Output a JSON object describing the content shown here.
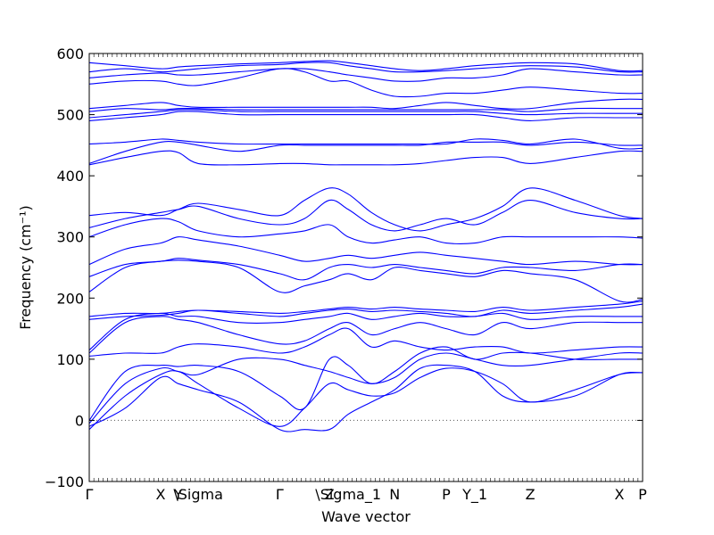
{
  "chart_data": {
    "type": "line",
    "title": "",
    "xlabel": "Wave vector",
    "ylabel": "Frequency (cm⁻¹)",
    "ylim": [
      -100,
      600
    ],
    "yticks": [
      "−100",
      "0",
      "100",
      "200",
      "300",
      "400",
      "500",
      "600"
    ],
    "ytick_values": [
      -100,
      0,
      100,
      200,
      300,
      400,
      500,
      600
    ],
    "xlim": [
      0,
      1
    ],
    "xticks": [
      {
        "label": "Γ",
        "pos": 0.0
      },
      {
        "label": "X",
        "pos": 0.129
      },
      {
        "label": "Y",
        "pos": 0.161
      },
      {
        "label": "\\Sigma",
        "pos": 0.197
      },
      {
        "label": "Γ",
        "pos": 0.344
      },
      {
        "label": "Z",
        "pos": 0.434
      },
      {
        "label": "\\Sigma_1",
        "pos": 0.468
      },
      {
        "label": "N",
        "pos": 0.552
      },
      {
        "label": "P",
        "pos": 0.645
      },
      {
        "label": "Y_1",
        "pos": 0.697
      },
      {
        "label": "Z",
        "pos": 0.797
      },
      {
        "label": "X",
        "pos": 0.958
      },
      {
        "label": "P",
        "pos": 1.0
      }
    ],
    "zero_line": {
      "y": 0,
      "style": "dotted",
      "color": "#555555"
    },
    "line_color": "#0000ff",
    "x": [
      0.0,
      0.065,
      0.129,
      0.161,
      0.197,
      0.27,
      0.344,
      0.389,
      0.434,
      0.468,
      0.51,
      0.552,
      0.598,
      0.645,
      0.697,
      0.747,
      0.797,
      0.878,
      0.958,
      1.0
    ],
    "series": [
      {
        "values": [
          -15,
          40,
          75,
          80,
          60,
          20,
          -10,
          20,
          60,
          50,
          40,
          45,
          70,
          85,
          80,
          60,
          30,
          50,
          75,
          78
        ]
      },
      {
        "values": [
          -10,
          20,
          70,
          60,
          50,
          30,
          -15,
          -15,
          -15,
          10,
          30,
          50,
          85,
          90,
          80,
          40,
          30,
          40,
          75,
          78
        ]
      },
      {
        "values": [
          -5,
          60,
          85,
          80,
          75,
          100,
          100,
          90,
          80,
          70,
          60,
          70,
          100,
          110,
          100,
          90,
          90,
          100,
          110,
          110
        ]
      },
      {
        "values": [
          0,
          80,
          90,
          88,
          90,
          80,
          40,
          20,
          100,
          90,
          60,
          80,
          110,
          120,
          100,
          110,
          110,
          100,
          100,
          100
        ]
      },
      {
        "values": [
          105,
          110,
          110,
          120,
          125,
          120,
          110,
          120,
          140,
          150,
          120,
          130,
          120,
          115,
          120,
          120,
          110,
          115,
          120,
          120
        ]
      },
      {
        "values": [
          110,
          160,
          170,
          165,
          160,
          140,
          125,
          130,
          150,
          160,
          140,
          150,
          160,
          150,
          140,
          160,
          150,
          160,
          160,
          160
        ]
      },
      {
        "values": [
          115,
          165,
          175,
          170,
          170,
          160,
          160,
          165,
          170,
          175,
          165,
          170,
          175,
          170,
          170,
          175,
          165,
          170,
          170,
          170
        ]
      },
      {
        "values": [
          165,
          170,
          172,
          175,
          180,
          175,
          170,
          175,
          180,
          182,
          178,
          180,
          178,
          175,
          170,
          180,
          175,
          180,
          185,
          190
        ]
      },
      {
        "values": [
          170,
          175,
          175,
          178,
          180,
          178,
          175,
          178,
          182,
          185,
          182,
          185,
          182,
          180,
          178,
          185,
          180,
          185,
          190,
          195
        ]
      },
      {
        "values": [
          210,
          250,
          260,
          262,
          260,
          250,
          210,
          220,
          230,
          240,
          230,
          250,
          245,
          240,
          235,
          245,
          240,
          230,
          195,
          198
        ]
      },
      {
        "values": [
          235,
          255,
          260,
          265,
          262,
          255,
          240,
          230,
          250,
          255,
          250,
          255,
          250,
          245,
          240,
          250,
          250,
          245,
          255,
          255
        ]
      },
      {
        "values": [
          255,
          280,
          290,
          300,
          295,
          285,
          270,
          260,
          265,
          270,
          265,
          270,
          275,
          270,
          265,
          260,
          255,
          260,
          255,
          255
        ]
      },
      {
        "values": [
          300,
          320,
          330,
          325,
          310,
          300,
          305,
          310,
          320,
          300,
          290,
          295,
          300,
          290,
          290,
          300,
          300,
          300,
          300,
          298
        ]
      },
      {
        "values": [
          315,
          330,
          340,
          345,
          350,
          330,
          320,
          330,
          360,
          345,
          320,
          310,
          320,
          330,
          320,
          340,
          360,
          340,
          330,
          330
        ]
      },
      {
        "values": [
          335,
          340,
          335,
          345,
          355,
          345,
          335,
          360,
          380,
          370,
          340,
          320,
          310,
          320,
          330,
          350,
          380,
          360,
          335,
          330
        ]
      },
      {
        "values": [
          418,
          430,
          440,
          438,
          420,
          418,
          420,
          420,
          418,
          418,
          418,
          418,
          420,
          425,
          430,
          430,
          420,
          430,
          440,
          440
        ]
      },
      {
        "values": [
          420,
          440,
          455,
          455,
          450,
          440,
          450,
          450,
          450,
          450,
          450,
          450,
          450,
          455,
          455,
          455,
          450,
          455,
          450,
          450
        ]
      },
      {
        "values": [
          452,
          455,
          460,
          458,
          455,
          452,
          452,
          452,
          452,
          452,
          452,
          452,
          452,
          452,
          460,
          458,
          452,
          460,
          445,
          445
        ]
      },
      {
        "values": [
          490,
          495,
          500,
          505,
          505,
          500,
          500,
          500,
          500,
          500,
          500,
          500,
          500,
          500,
          500,
          495,
          490,
          495,
          495,
          495
        ]
      },
      {
        "values": [
          495,
          500,
          505,
          508,
          508,
          505,
          505,
          505,
          505,
          505,
          505,
          505,
          505,
          505,
          505,
          502,
          500,
          502,
          502,
          502
        ]
      },
      {
        "values": [
          505,
          510,
          508,
          510,
          510,
          508,
          508,
          508,
          508,
          508,
          508,
          508,
          508,
          508,
          508,
          508,
          505,
          510,
          510,
          510
        ]
      },
      {
        "values": [
          510,
          515,
          520,
          515,
          512,
          512,
          512,
          512,
          512,
          512,
          512,
          510,
          515,
          520,
          515,
          510,
          510,
          520,
          525,
          525
        ]
      },
      {
        "values": [
          550,
          555,
          555,
          550,
          548,
          560,
          575,
          570,
          555,
          555,
          540,
          530,
          530,
          535,
          535,
          540,
          545,
          540,
          535,
          535
        ]
      },
      {
        "values": [
          560,
          565,
          568,
          565,
          565,
          570,
          575,
          575,
          570,
          565,
          560,
          555,
          555,
          560,
          560,
          565,
          575,
          570,
          565,
          565
        ]
      },
      {
        "values": [
          570,
          575,
          570,
          572,
          575,
          580,
          582,
          585,
          585,
          580,
          575,
          570,
          570,
          572,
          575,
          578,
          580,
          578,
          570,
          570
        ]
      },
      {
        "values": [
          585,
          580,
          575,
          578,
          580,
          583,
          585,
          587,
          588,
          585,
          580,
          575,
          572,
          575,
          580,
          583,
          585,
          583,
          572,
          572
        ]
      }
    ]
  }
}
